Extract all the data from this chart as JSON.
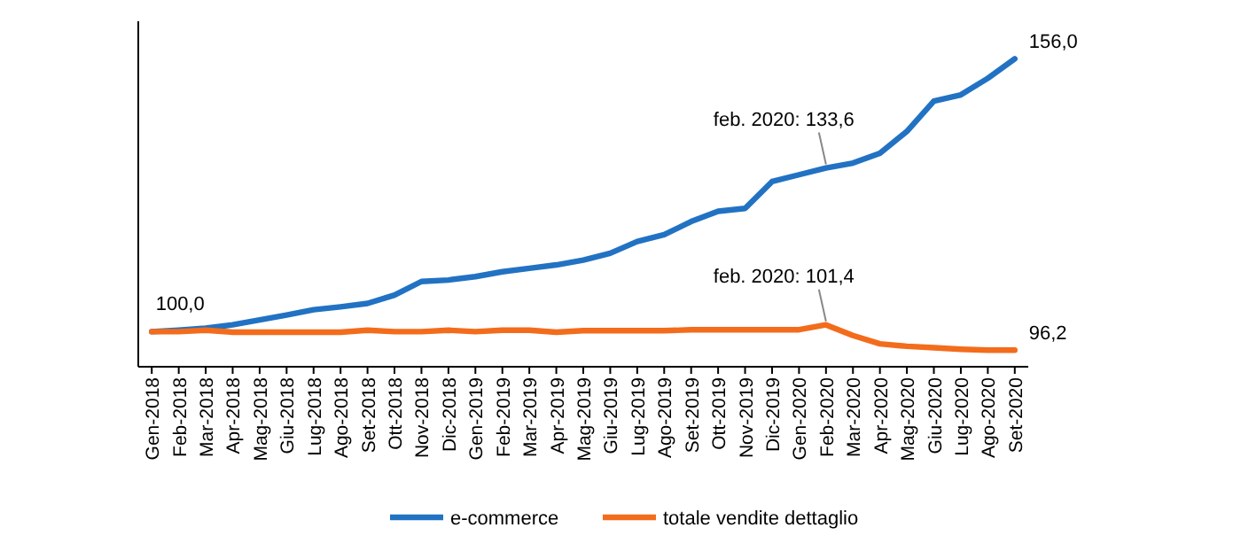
{
  "chart_data": {
    "type": "line",
    "categories": [
      "Gen-2018",
      "Feb-2018",
      "Mar-2018",
      "Apr-2018",
      "Mag-2018",
      "Giu-2018",
      "Lug-2018",
      "Ago-2018",
      "Set-2018",
      "Ott-2018",
      "Nov-2018",
      "Dic-2018",
      "Gen-2019",
      "Feb-2019",
      "Mar-2019",
      "Apr-2019",
      "Mag-2019",
      "Giu-2019",
      "Lug-2019",
      "Ago-2019",
      "Set-2019",
      "Ott-2019",
      "Nov-2019",
      "Dic-2019",
      "Gen-2020",
      "Feb-2020",
      "Mar-2020",
      "Apr-2020",
      "Mag-2020",
      "Giu-2020",
      "Lug-2020",
      "Ago-2020",
      "Set-2020"
    ],
    "series": [
      {
        "name": "e-commerce",
        "color": "#2272c3",
        "values": [
          100.0,
          100.3,
          100.7,
          101.4,
          102.4,
          103.4,
          104.5,
          105.1,
          105.8,
          107.5,
          110.3,
          110.6,
          111.3,
          112.3,
          113.0,
          113.7,
          114.7,
          116.1,
          118.5,
          119.9,
          122.6,
          124.7,
          125.3,
          130.8,
          132.2,
          133.6,
          134.6,
          136.6,
          141.1,
          147.3,
          148.6,
          152.0,
          156.0
        ],
        "value_labels": [
          "100,0",
          null,
          null,
          null,
          null,
          null,
          null,
          null,
          null,
          null,
          null,
          null,
          null,
          null,
          null,
          null,
          null,
          null,
          null,
          null,
          null,
          null,
          null,
          null,
          null,
          null,
          null,
          null,
          null,
          null,
          null,
          null,
          "156,0"
        ]
      },
      {
        "name": "totale vendite dettaglio",
        "color": "#f36c1c",
        "values": [
          100.0,
          100.0,
          100.3,
          99.9,
          99.9,
          99.9,
          99.9,
          99.9,
          100.3,
          100.0,
          100.0,
          100.3,
          100.0,
          100.3,
          100.3,
          99.9,
          100.2,
          100.2,
          100.2,
          100.2,
          100.4,
          100.4,
          100.4,
          100.4,
          100.4,
          101.4,
          99.2,
          97.5,
          97.0,
          96.7,
          96.4,
          96.2,
          96.2
        ],
        "value_labels": [
          null,
          null,
          null,
          null,
          null,
          null,
          null,
          null,
          null,
          null,
          null,
          null,
          null,
          null,
          null,
          null,
          null,
          null,
          null,
          null,
          null,
          null,
          null,
          null,
          null,
          null,
          null,
          null,
          null,
          null,
          null,
          null,
          "96,2"
        ]
      }
    ],
    "ylim": [
      92.8,
      163.7
    ],
    "tick_labels": "x",
    "legend": "bottom",
    "marker": "none",
    "line_style": "solid",
    "annotations": [
      {
        "text": "feb. 2020: 133,6",
        "x": "Feb-2020",
        "y": 133.6
      },
      {
        "text": "feb. 2020: 101,4",
        "x": "Feb-2020",
        "y": 101.4
      }
    ]
  }
}
